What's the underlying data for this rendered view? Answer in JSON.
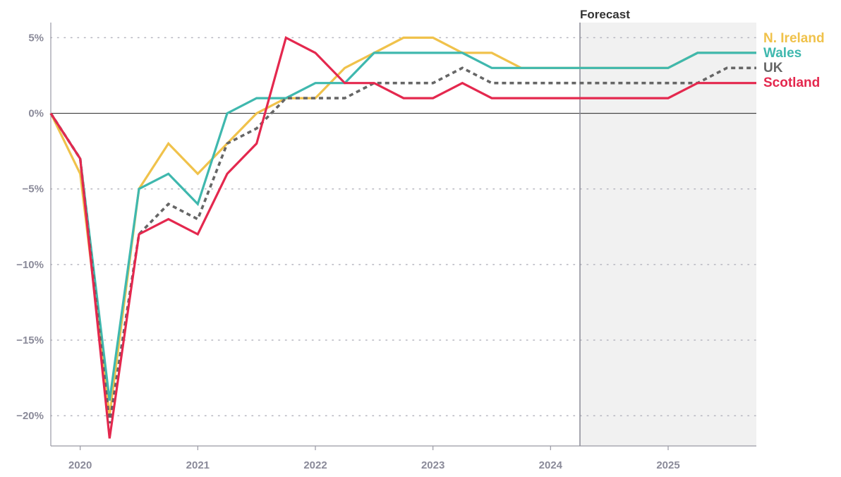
{
  "chart_data": {
    "type": "line",
    "title": "",
    "xlabel": "",
    "ylabel": "",
    "forecast_label": "Forecast",
    "forecast_start": 2024.25,
    "grid": true,
    "legend_placement": "right",
    "xlim": [
      2019.75,
      2025.75
    ],
    "ylim": [
      -22,
      6
    ],
    "x_ticks": [
      2020,
      2021,
      2022,
      2023,
      2024,
      2025
    ],
    "x_tick_labels": [
      "2020",
      "2021",
      "2022",
      "2023",
      "2024",
      "2025"
    ],
    "y_ticks": [
      5,
      0,
      -5,
      -10,
      -15,
      -20
    ],
    "y_tick_labels": [
      "5%",
      "0%",
      "−5%",
      "−10%",
      "−15%",
      "−20%"
    ],
    "x": [
      2019.75,
      2020,
      2020.25,
      2020.5,
      2020.75,
      2021,
      2021.25,
      2021.5,
      2021.75,
      2022,
      2022.25,
      2022.5,
      2022.75,
      2023,
      2023.25,
      2023.5,
      2023.75,
      2024,
      2024.25,
      2024.5,
      2024.75,
      2025,
      2025.25,
      2025.5,
      2025.75
    ],
    "series": [
      {
        "name": "N. Ireland",
        "color": "#f0c24b",
        "dashed": false,
        "values": [
          0,
          -4,
          -20,
          -5,
          -2,
          -4,
          -2,
          0,
          1,
          1,
          3,
          4,
          5,
          5,
          4,
          4,
          3,
          3,
          3,
          3,
          3,
          3,
          4,
          4,
          4
        ]
      },
      {
        "name": "Wales",
        "color": "#3fb8ae",
        "dashed": false,
        "values": [
          0,
          -3,
          -19,
          -5,
          -4,
          -6,
          0,
          1,
          1,
          2,
          2,
          4,
          4,
          4,
          4,
          3,
          3,
          3,
          3,
          3,
          3,
          3,
          4,
          4,
          4
        ]
      },
      {
        "name": "UK",
        "color": "#666666",
        "dashed": true,
        "values": [
          0,
          -3,
          -20.5,
          -8,
          -6,
          -7,
          -2,
          -1,
          1,
          1,
          1,
          2,
          2,
          2,
          3,
          2,
          2,
          2,
          2,
          2,
          2,
          2,
          2,
          3,
          3
        ]
      },
      {
        "name": "Scotland",
        "color": "#e4284e",
        "dashed": false,
        "values": [
          0,
          -3,
          -21.5,
          -8,
          -7,
          -8,
          -4,
          -2,
          5,
          4,
          2,
          2,
          1,
          1,
          2,
          1,
          1,
          1,
          1,
          1,
          1,
          1,
          2,
          2,
          2
        ]
      }
    ]
  }
}
